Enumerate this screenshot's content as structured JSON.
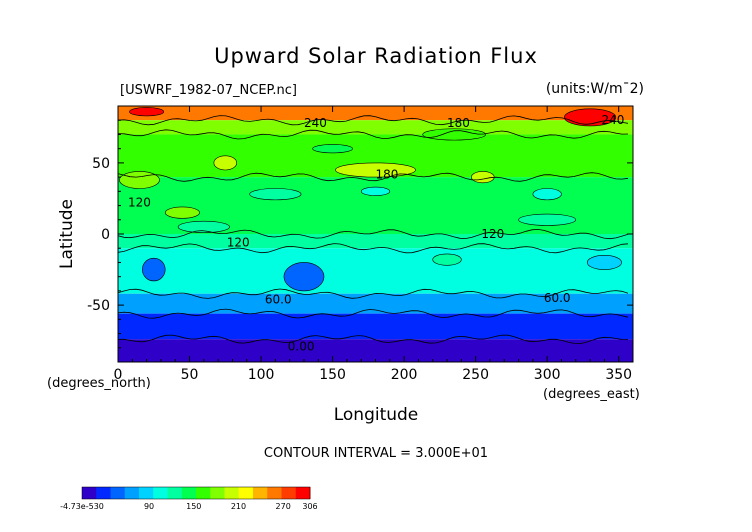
{
  "header": {
    "title": "Upward Solar Radiation Flux",
    "file_label": "[USWRF_1982-07_NCEP.nc]",
    "units_label": "(units:W/m^2)"
  },
  "footer": {
    "contour_interval": "CONTOUR INTERVAL = 3.000E+01"
  },
  "chart_data": {
    "type": "heatmap",
    "title": "Upward Solar Radiation Flux",
    "xlabel": "Longitude",
    "ylabel": "Latitude",
    "x_unit_label": "(degrees_east)",
    "y_unit_label": "(degrees_north)",
    "xlim": [
      0,
      360
    ],
    "ylim": [
      -90,
      90
    ],
    "x_ticks": [
      0,
      50,
      100,
      150,
      200,
      250,
      300,
      350
    ],
    "y_ticks": [
      -50,
      0,
      50
    ],
    "contour_labels": [
      {
        "text": "240",
        "x": 138,
        "y": 78
      },
      {
        "text": "180",
        "x": 238,
        "y": 78
      },
      {
        "text": "240",
        "x": 346,
        "y": 80
      },
      {
        "text": "180",
        "x": 188,
        "y": 42
      },
      {
        "text": "120",
        "x": 15,
        "y": 22
      },
      {
        "text": "120",
        "x": 84,
        "y": -6
      },
      {
        "text": "120",
        "x": 262,
        "y": 0
      },
      {
        "text": "60.0",
        "x": 112,
        "y": -46
      },
      {
        "text": "60.0",
        "x": 307,
        "y": -45
      },
      {
        "text": "0.00",
        "x": 128,
        "y": -79
      }
    ],
    "lat_bands": [
      {
        "lat_from": 90,
        "lat_to": 80,
        "value": 250
      },
      {
        "lat_from": 80,
        "lat_to": 70,
        "value": 190
      },
      {
        "lat_from": 70,
        "lat_to": 40,
        "value": 160
      },
      {
        "lat_from": 40,
        "lat_to": 0,
        "value": 140
      },
      {
        "lat_from": 0,
        "lat_to": -10,
        "value": 120
      },
      {
        "lat_from": -10,
        "lat_to": -42,
        "value": 100
      },
      {
        "lat_from": -42,
        "lat_to": -56,
        "value": 60
      },
      {
        "lat_from": -56,
        "lat_to": -74,
        "value": 30
      },
      {
        "lat_from": -74,
        "lat_to": -90,
        "value": 0
      }
    ],
    "colorbar": {
      "tick_labels": [
        "-4.73e-530",
        "90",
        "150",
        "210",
        "270",
        "306"
      ],
      "colors": [
        "#2e00c8",
        "#0028ff",
        "#0064ff",
        "#00a0ff",
        "#00d2ff",
        "#00ffe0",
        "#00ffa0",
        "#00ff50",
        "#32ff00",
        "#80ff00",
        "#c8ff00",
        "#ffff00",
        "#ffb400",
        "#ff7800",
        "#ff3c00",
        "#ff0000"
      ]
    }
  }
}
